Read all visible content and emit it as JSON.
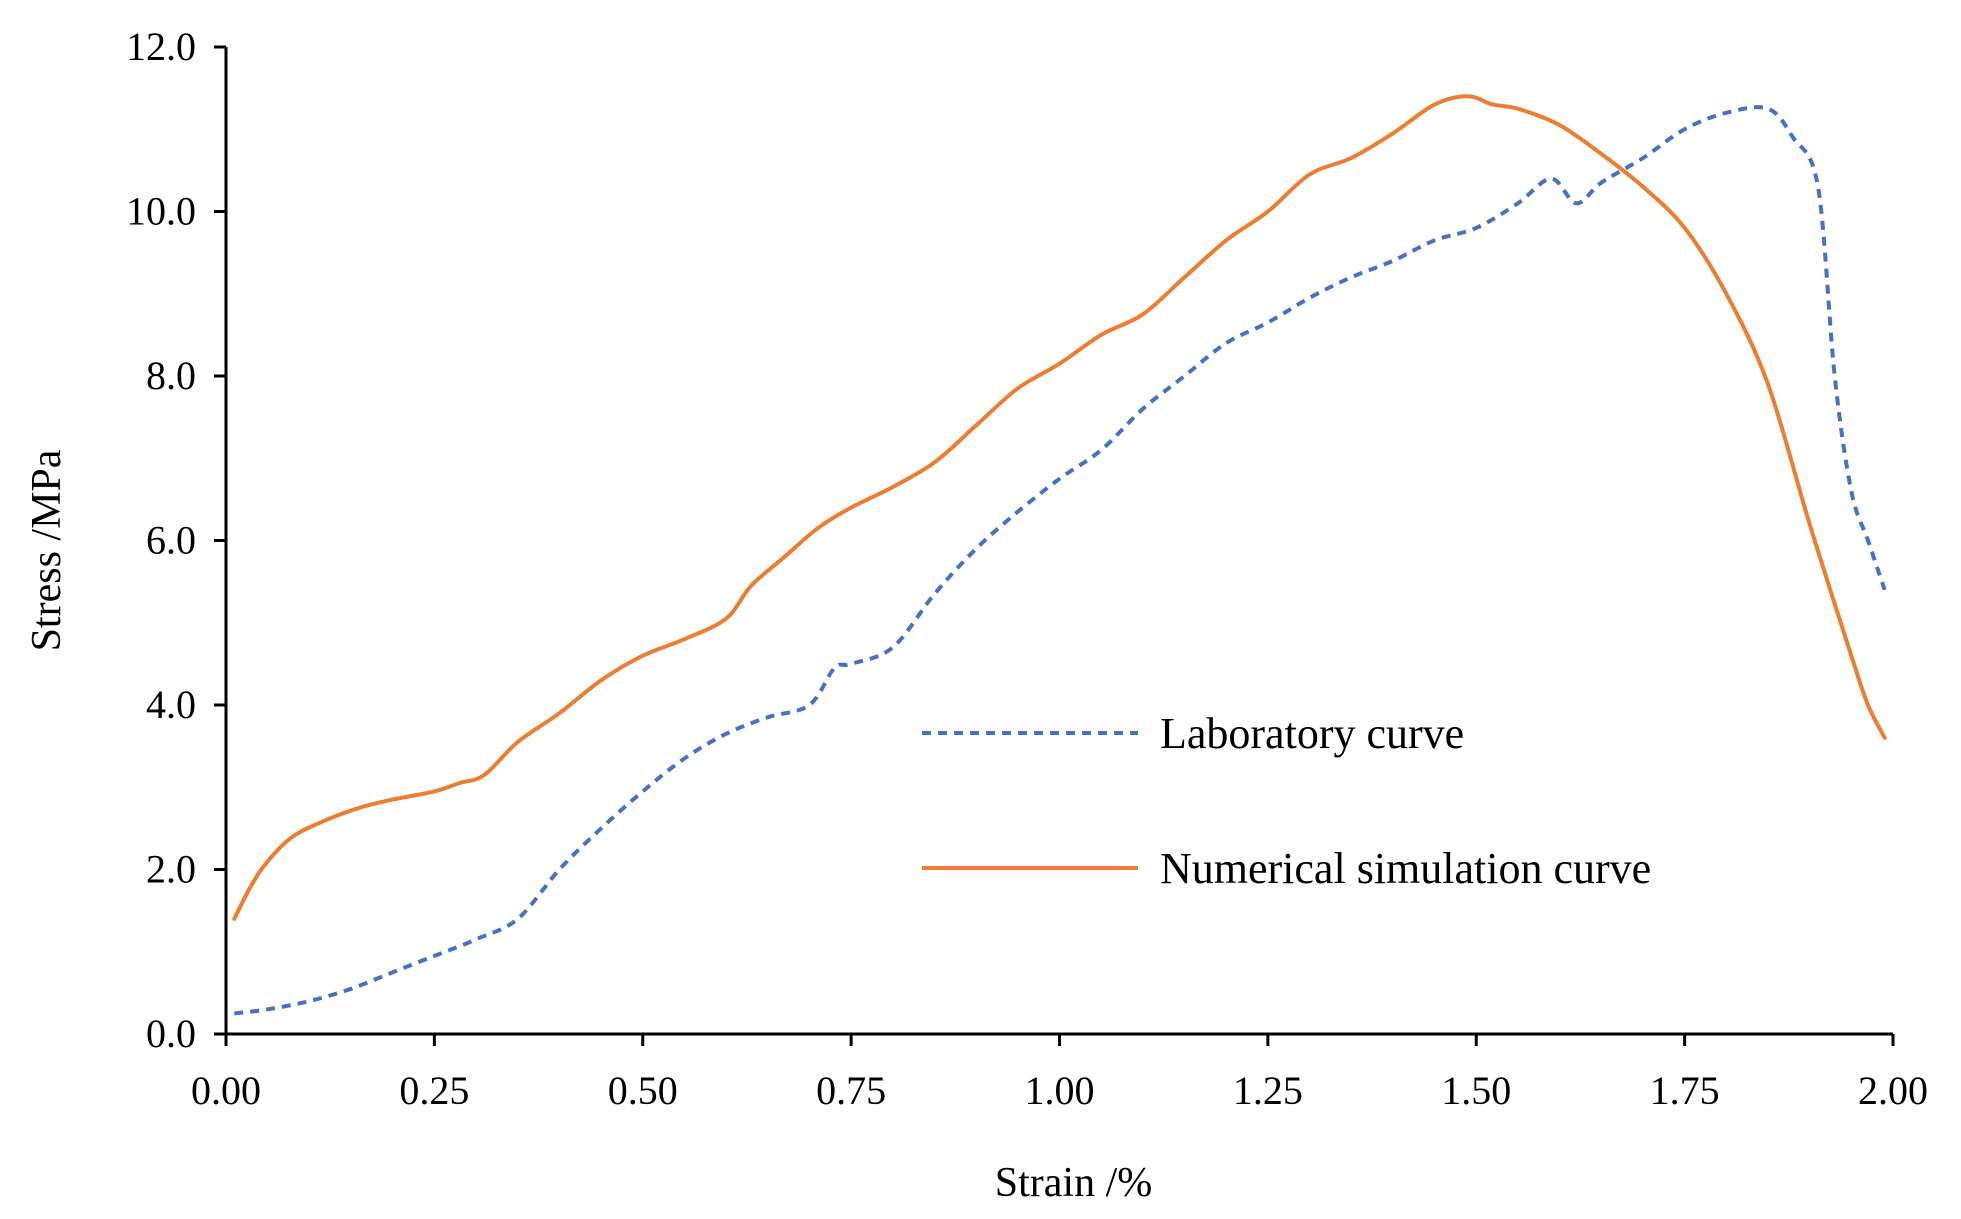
{
  "chart_data": {
    "type": "line",
    "title": "",
    "xlabel": "Strain /%",
    "ylabel": "Stress /MPa",
    "xlim": [
      0,
      2.0
    ],
    "ylim": [
      0,
      12.0
    ],
    "x_ticks": [
      "0.00",
      "0.25",
      "0.50",
      "0.75",
      "1.00",
      "1.25",
      "1.50",
      "1.75",
      "2.00"
    ],
    "y_ticks": [
      "0.0",
      "2.0",
      "4.0",
      "6.0",
      "8.0",
      "10.0",
      "12.0"
    ],
    "grid": false,
    "legend_position": "center-right",
    "series": [
      {
        "name": "Laboratory curve",
        "color": "#4472C4",
        "style": "dashed",
        "points": [
          [
            0.01,
            0.25
          ],
          [
            0.05,
            0.3
          ],
          [
            0.1,
            0.4
          ],
          [
            0.15,
            0.55
          ],
          [
            0.2,
            0.75
          ],
          [
            0.25,
            0.95
          ],
          [
            0.3,
            1.15
          ],
          [
            0.35,
            1.4
          ],
          [
            0.4,
            2.0
          ],
          [
            0.45,
            2.5
          ],
          [
            0.5,
            2.95
          ],
          [
            0.55,
            3.35
          ],
          [
            0.6,
            3.65
          ],
          [
            0.65,
            3.85
          ],
          [
            0.7,
            4.0
          ],
          [
            0.73,
            4.45
          ],
          [
            0.75,
            4.5
          ],
          [
            0.8,
            4.7
          ],
          [
            0.85,
            5.35
          ],
          [
            0.9,
            5.9
          ],
          [
            0.95,
            6.35
          ],
          [
            1.0,
            6.75
          ],
          [
            1.05,
            7.1
          ],
          [
            1.1,
            7.6
          ],
          [
            1.15,
            8.0
          ],
          [
            1.2,
            8.4
          ],
          [
            1.25,
            8.65
          ],
          [
            1.3,
            8.95
          ],
          [
            1.35,
            9.2
          ],
          [
            1.4,
            9.4
          ],
          [
            1.45,
            9.65
          ],
          [
            1.5,
            9.8
          ],
          [
            1.55,
            10.1
          ],
          [
            1.59,
            10.4
          ],
          [
            1.62,
            10.1
          ],
          [
            1.65,
            10.35
          ],
          [
            1.7,
            10.65
          ],
          [
            1.75,
            11.0
          ],
          [
            1.8,
            11.2
          ],
          [
            1.85,
            11.25
          ],
          [
            1.88,
            10.9
          ],
          [
            1.91,
            10.3
          ],
          [
            1.93,
            8.0
          ],
          [
            1.95,
            6.6
          ],
          [
            1.97,
            6.0
          ],
          [
            1.99,
            5.4
          ]
        ]
      },
      {
        "name": "Numerical simulation curve",
        "color": "#ED7D31",
        "style": "solid",
        "points": [
          [
            0.01,
            1.4
          ],
          [
            0.03,
            1.8
          ],
          [
            0.05,
            2.1
          ],
          [
            0.08,
            2.4
          ],
          [
            0.12,
            2.6
          ],
          [
            0.16,
            2.75
          ],
          [
            0.2,
            2.85
          ],
          [
            0.25,
            2.95
          ],
          [
            0.28,
            3.05
          ],
          [
            0.31,
            3.15
          ],
          [
            0.35,
            3.55
          ],
          [
            0.4,
            3.9
          ],
          [
            0.45,
            4.3
          ],
          [
            0.5,
            4.6
          ],
          [
            0.55,
            4.8
          ],
          [
            0.6,
            5.05
          ],
          [
            0.63,
            5.45
          ],
          [
            0.67,
            5.8
          ],
          [
            0.71,
            6.15
          ],
          [
            0.75,
            6.4
          ],
          [
            0.8,
            6.65
          ],
          [
            0.85,
            6.95
          ],
          [
            0.9,
            7.4
          ],
          [
            0.95,
            7.85
          ],
          [
            1.0,
            8.15
          ],
          [
            1.05,
            8.5
          ],
          [
            1.1,
            8.75
          ],
          [
            1.15,
            9.2
          ],
          [
            1.2,
            9.65
          ],
          [
            1.25,
            10.0
          ],
          [
            1.3,
            10.45
          ],
          [
            1.35,
            10.65
          ],
          [
            1.4,
            10.95
          ],
          [
            1.45,
            11.3
          ],
          [
            1.49,
            11.4
          ],
          [
            1.52,
            11.3
          ],
          [
            1.55,
            11.25
          ],
          [
            1.6,
            11.05
          ],
          [
            1.65,
            10.7
          ],
          [
            1.7,
            10.3
          ],
          [
            1.75,
            9.8
          ],
          [
            1.8,
            9.0
          ],
          [
            1.85,
            7.9
          ],
          [
            1.9,
            6.2
          ],
          [
            1.95,
            4.6
          ],
          [
            1.97,
            4.0
          ],
          [
            1.99,
            3.6
          ]
        ]
      }
    ]
  }
}
